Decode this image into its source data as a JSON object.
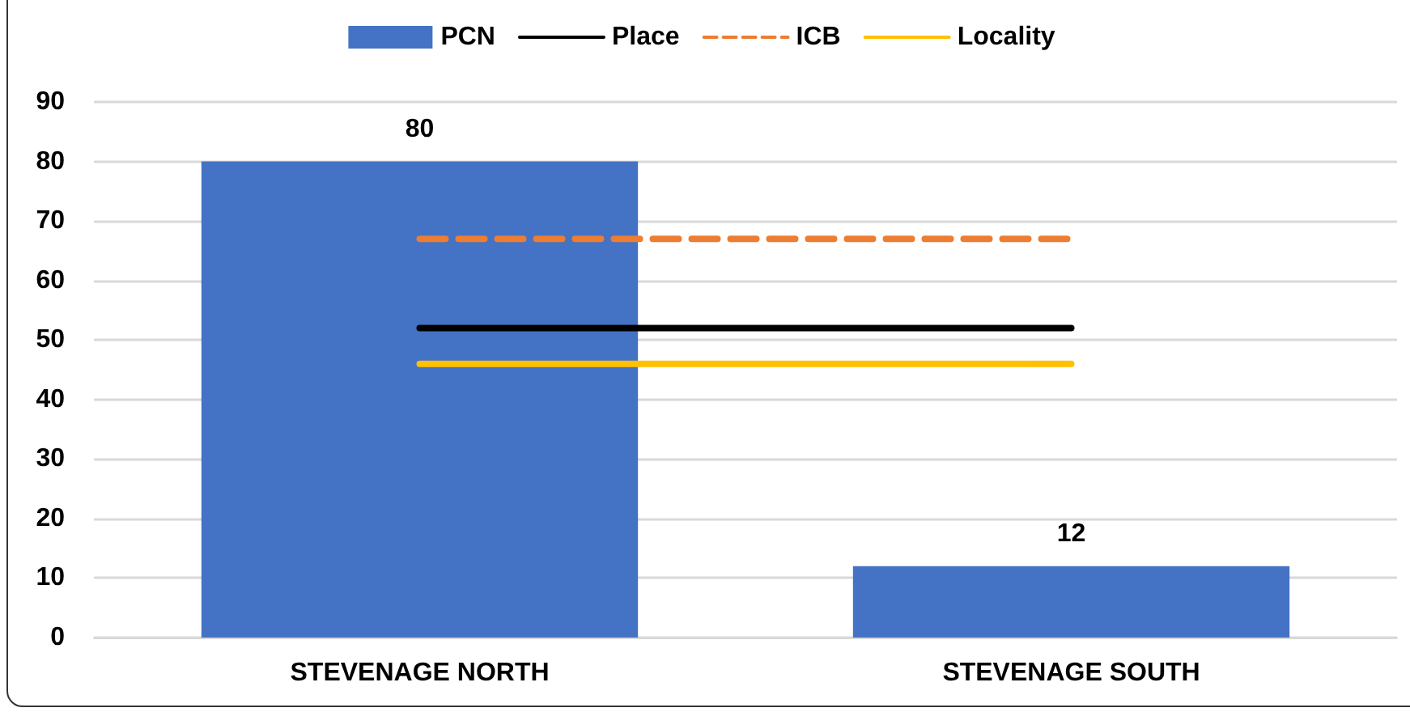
{
  "chart_data": {
    "type": "bar",
    "categories": [
      "STEVENAGE NORTH",
      "STEVENAGE SOUTH"
    ],
    "series": [
      {
        "name": "PCN",
        "color": "#4472c4",
        "values": [
          80,
          12
        ],
        "value_labels": [
          "80",
          "12"
        ]
      },
      {
        "name": "Place",
        "type": "line",
        "color": "#000000",
        "values": [
          52,
          52
        ]
      },
      {
        "name": "ICB",
        "type": "line",
        "color": "#ed7d31",
        "values": [
          67,
          67
        ],
        "line_style": "dashed"
      },
      {
        "name": "Locality",
        "type": "line",
        "color": "#ffc000",
        "values": [
          46,
          46
        ]
      }
    ],
    "ylim": [
      0,
      90
    ],
    "yticks": [
      0,
      10,
      20,
      30,
      40,
      50,
      60,
      70,
      80,
      90
    ],
    "grid": "y",
    "legend": "top",
    "marker": "none"
  }
}
